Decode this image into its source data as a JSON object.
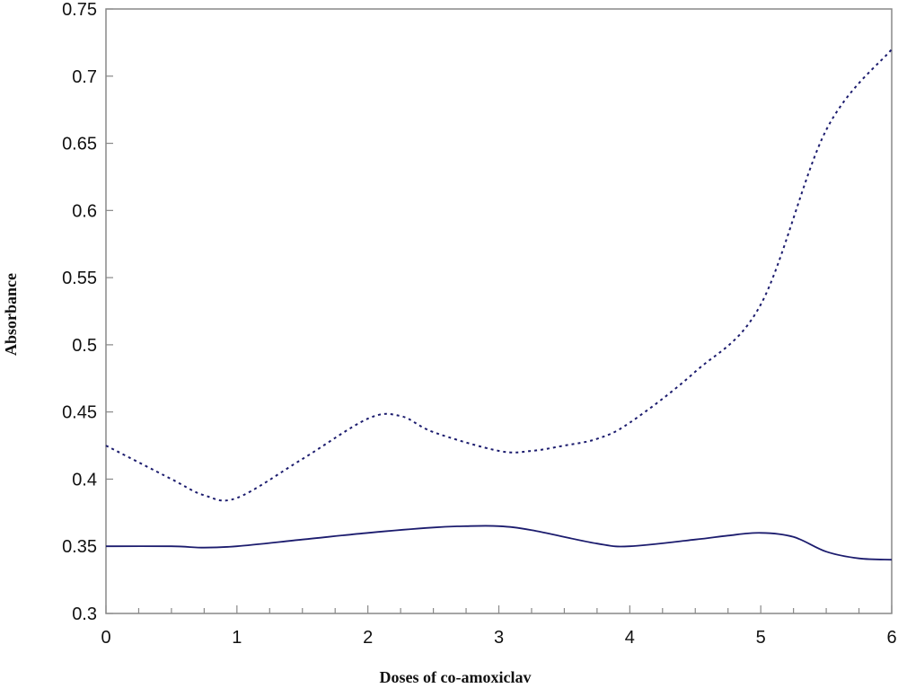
{
  "chart_data": {
    "type": "line",
    "title": "",
    "xlabel": "Doses of co-amoxiclav",
    "ylabel": "Absorbance",
    "xlim": [
      0,
      6
    ],
    "ylim": [
      0.3,
      0.75
    ],
    "x_ticks": [
      "0",
      "1",
      "2",
      "3",
      "4",
      "5",
      "6"
    ],
    "y_ticks": [
      "0.3",
      "0.35",
      "0.4",
      "0.45",
      "0.5",
      "0.55",
      "0.6",
      "0.65",
      "0.7",
      "0.75"
    ],
    "grid": false,
    "legend": "none",
    "series": [
      {
        "style": "solid",
        "color": "#1c1c6e",
        "x": [
          0,
          0.5,
          0.75,
          1,
          1.5,
          2,
          2.5,
          2.75,
          3,
          3.25,
          3.75,
          4,
          4.5,
          4.75,
          5,
          5.25,
          5.5,
          5.75,
          6
        ],
        "y": [
          0.35,
          0.35,
          0.349,
          0.35,
          0.355,
          0.36,
          0.364,
          0.365,
          0.365,
          0.362,
          0.352,
          0.35,
          0.355,
          0.358,
          0.36,
          0.357,
          0.346,
          0.341,
          0.34
        ]
      },
      {
        "style": "dotted",
        "color": "#1c1c6e",
        "x": [
          0,
          0.5,
          0.75,
          1,
          1.5,
          2,
          2.25,
          2.5,
          3,
          3.25,
          3.5,
          3.75,
          4,
          4.5,
          5,
          5.5,
          6
        ],
        "y": [
          0.425,
          0.4,
          0.388,
          0.386,
          0.415,
          0.445,
          0.447,
          0.435,
          0.421,
          0.421,
          0.425,
          0.43,
          0.442,
          0.48,
          0.53,
          0.66,
          0.72
        ]
      }
    ]
  }
}
